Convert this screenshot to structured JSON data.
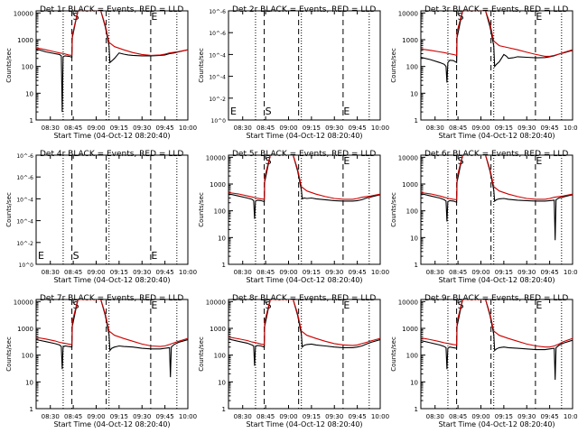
{
  "page": {
    "title_suffix": "BLACK = Events, RED = LLD",
    "xlabel": "Start Time (04-Oct-12 08:20:40)",
    "ylabel": "Counts/sec"
  },
  "axes": {
    "x_ticks": [
      {
        "v": 8.5,
        "label": "08:30"
      },
      {
        "v": 8.75,
        "label": "08:45"
      },
      {
        "v": 9.0,
        "label": "09:00"
      },
      {
        "v": 9.25,
        "label": "09:15"
      },
      {
        "v": 9.5,
        "label": "09:30"
      },
      {
        "v": 9.75,
        "label": "09:45"
      },
      {
        "v": 10.0,
        "label": "10:00"
      }
    ],
    "xlim": [
      8.345,
      10.0
    ],
    "log_ticks": [
      {
        "v": 1,
        "label": "1"
      },
      {
        "v": 10,
        "label": "10"
      },
      {
        "v": 100,
        "label": "100"
      },
      {
        "v": 1000,
        "label": "1000"
      },
      {
        "v": 10000,
        "label": "10000"
      }
    ],
    "ylim_log": [
      1,
      12000
    ],
    "empty_ticks": [
      {
        "v": 0.0,
        "label": "10^0"
      },
      {
        "v": 0.2,
        "label": "10^-2"
      },
      {
        "v": 0.4,
        "label": "10^-4"
      },
      {
        "v": 0.6,
        "label": "10^-4"
      },
      {
        "v": 0.8,
        "label": "10^-6"
      },
      {
        "v": 1.0,
        "label": "10^-6"
      }
    ],
    "ylim_linear": [
      0,
      1
    ]
  },
  "markers": {
    "dotted_x": [
      8.64,
      9.14,
      9.88
    ],
    "dashed_x": [
      8.735,
      9.11,
      9.595
    ],
    "s_label": "S",
    "e_label": "E",
    "s_x": 8.745,
    "e_x": 9.6
  },
  "chart_data": [
    {
      "type": "line",
      "title": "Det 1r",
      "scale": "log",
      "series": [
        {
          "name": "Events",
          "color": "#000000",
          "x": [
            8.345,
            8.45,
            8.55,
            8.6,
            8.62,
            8.63,
            8.64,
            8.66,
            8.7,
            8.72,
            8.735,
            8.74,
            8.8,
            8.9,
            9.0,
            9.05,
            9.1,
            9.14,
            9.15,
            9.17,
            9.2,
            9.25,
            9.28,
            9.3,
            9.35,
            9.4,
            9.5,
            9.6,
            9.7,
            9.75,
            9.8,
            9.85,
            9.9,
            10.0
          ],
          "y": [
            450,
            350,
            300,
            280,
            250,
            2,
            230,
            250,
            240,
            230,
            220,
            1200,
            12000,
            12000,
            12000,
            12000,
            3000,
            600,
            140,
            160,
            200,
            320,
            300,
            290,
            270,
            260,
            250,
            250,
            260,
            270,
            300,
            320,
            350,
            420
          ]
        },
        {
          "name": "LLD",
          "color": "#cc0000",
          "x": [
            8.345,
            8.45,
            8.55,
            8.6,
            8.65,
            8.7,
            8.735,
            8.74,
            8.8,
            8.9,
            9.0,
            9.05,
            9.1,
            9.14,
            9.2,
            9.3,
            9.4,
            9.5,
            9.6,
            9.7,
            9.75,
            9.8,
            9.85,
            9.9,
            10.0
          ],
          "y": [
            500,
            420,
            350,
            320,
            300,
            270,
            260,
            1500,
            12000,
            12000,
            12000,
            12000,
            3500,
            800,
            550,
            420,
            330,
            280,
            260,
            270,
            290,
            320,
            340,
            360,
            420
          ]
        }
      ]
    },
    {
      "type": "line",
      "title": "Det 2r",
      "scale": "linear",
      "series": [],
      "markers_text": true
    },
    {
      "type": "line",
      "title": "Det 3r",
      "scale": "log",
      "series": [
        {
          "name": "Events",
          "color": "#000000",
          "x": [
            8.345,
            8.45,
            8.55,
            8.6,
            8.62,
            8.63,
            8.64,
            8.66,
            8.7,
            8.735,
            8.74,
            8.8,
            8.9,
            9.0,
            9.05,
            9.1,
            9.14,
            9.15,
            9.17,
            9.2,
            9.25,
            9.28,
            9.3,
            9.35,
            9.4,
            9.5,
            9.6,
            9.7,
            9.75,
            9.8,
            9.85,
            9.9,
            10.0
          ],
          "y": [
            220,
            180,
            140,
            120,
            100,
            25,
            140,
            170,
            165,
            140,
            1200,
            12000,
            12000,
            12000,
            12000,
            3000,
            600,
            100,
            120,
            150,
            280,
            240,
            200,
            210,
            230,
            220,
            210,
            215,
            230,
            250,
            290,
            320,
            400
          ]
        },
        {
          "name": "LLD",
          "color": "#cc0000",
          "x": [
            8.345,
            8.45,
            8.55,
            8.6,
            8.65,
            8.7,
            8.735,
            8.74,
            8.8,
            8.9,
            9.0,
            9.05,
            9.1,
            9.14,
            9.2,
            9.3,
            9.4,
            9.5,
            9.6,
            9.7,
            9.75,
            9.8,
            9.85,
            9.9,
            10.0
          ],
          "y": [
            450,
            400,
            350,
            330,
            300,
            280,
            260,
            2000,
            12000,
            12000,
            12000,
            12000,
            4000,
            900,
            600,
            500,
            420,
            340,
            280,
            240,
            240,
            260,
            290,
            330,
            420
          ]
        }
      ]
    },
    {
      "type": "line",
      "title": "Det 4r",
      "scale": "linear",
      "series": [],
      "markers_text": true
    },
    {
      "type": "line",
      "title": "Det 5r",
      "scale": "log",
      "series": [
        {
          "name": "Events",
          "color": "#000000",
          "x": [
            8.345,
            8.45,
            8.55,
            8.6,
            8.62,
            8.63,
            8.64,
            8.66,
            8.7,
            8.735,
            8.74,
            8.8,
            8.9,
            9.0,
            9.05,
            9.1,
            9.14,
            9.15,
            9.17,
            9.2,
            9.25,
            9.3,
            9.4,
            9.5,
            9.6,
            9.7,
            9.75,
            9.8,
            9.85,
            9.9,
            10.0
          ],
          "y": [
            430,
            360,
            300,
            270,
            240,
            50,
            230,
            250,
            240,
            220,
            1200,
            12000,
            12000,
            12000,
            12000,
            3000,
            600,
            280,
            300,
            290,
            300,
            280,
            260,
            240,
            230,
            230,
            240,
            260,
            300,
            330,
            400
          ]
        },
        {
          "name": "LLD",
          "color": "#cc0000",
          "x": [
            8.345,
            8.45,
            8.55,
            8.6,
            8.65,
            8.7,
            8.735,
            8.74,
            8.8,
            8.9,
            9.0,
            9.05,
            9.1,
            9.14,
            9.2,
            9.3,
            9.4,
            9.5,
            9.6,
            9.7,
            9.75,
            9.8,
            9.85,
            9.9,
            10.0
          ],
          "y": [
            480,
            430,
            360,
            330,
            300,
            280,
            270,
            1800,
            12000,
            12000,
            12000,
            12000,
            3500,
            800,
            550,
            420,
            340,
            290,
            270,
            270,
            290,
            320,
            340,
            360,
            420
          ]
        }
      ]
    },
    {
      "type": "line",
      "title": "Det 6r",
      "scale": "log",
      "series": [
        {
          "name": "Events",
          "color": "#000000",
          "x": [
            8.345,
            8.45,
            8.55,
            8.6,
            8.62,
            8.63,
            8.64,
            8.66,
            8.7,
            8.735,
            8.74,
            8.8,
            8.9,
            9.0,
            9.05,
            9.1,
            9.14,
            9.15,
            9.17,
            9.2,
            9.25,
            9.3,
            9.4,
            9.5,
            9.6,
            9.7,
            9.75,
            9.8,
            9.81,
            9.82,
            9.85,
            9.9,
            10.0
          ],
          "y": [
            440,
            360,
            300,
            260,
            230,
            40,
            220,
            240,
            230,
            210,
            1200,
            12000,
            12000,
            12000,
            12000,
            3000,
            600,
            230,
            260,
            280,
            290,
            270,
            250,
            240,
            230,
            230,
            240,
            250,
            8,
            260,
            300,
            330,
            400
          ]
        },
        {
          "name": "LLD",
          "color": "#cc0000",
          "x": [
            8.345,
            8.45,
            8.55,
            8.6,
            8.65,
            8.7,
            8.735,
            8.74,
            8.8,
            8.9,
            9.0,
            9.05,
            9.1,
            9.14,
            9.2,
            9.3,
            9.4,
            9.5,
            9.6,
            9.7,
            9.75,
            9.8,
            9.85,
            9.9,
            10.0
          ],
          "y": [
            480,
            430,
            360,
            320,
            290,
            270,
            260,
            1800,
            12000,
            12000,
            12000,
            12000,
            3500,
            800,
            550,
            420,
            340,
            290,
            270,
            270,
            290,
            320,
            340,
            360,
            420
          ]
        }
      ]
    },
    {
      "type": "line",
      "title": "Det 7r",
      "scale": "log",
      "series": [
        {
          "name": "Events",
          "color": "#000000",
          "x": [
            8.345,
            8.45,
            8.55,
            8.6,
            8.62,
            8.63,
            8.64,
            8.66,
            8.7,
            8.735,
            8.74,
            8.8,
            8.9,
            9.0,
            9.05,
            9.1,
            9.14,
            9.15,
            9.17,
            9.2,
            9.25,
            9.3,
            9.4,
            9.5,
            9.6,
            9.7,
            9.75,
            9.8,
            9.81,
            9.82,
            9.85,
            9.9,
            10.0
          ],
          "y": [
            380,
            320,
            270,
            240,
            210,
            30,
            200,
            220,
            210,
            200,
            1200,
            12000,
            12000,
            12000,
            12000,
            3000,
            600,
            150,
            180,
            200,
            220,
            210,
            200,
            180,
            170,
            170,
            180,
            190,
            15,
            200,
            250,
            300,
            380
          ]
        },
        {
          "name": "LLD",
          "color": "#cc0000",
          "x": [
            8.345,
            8.45,
            8.55,
            8.6,
            8.65,
            8.7,
            8.735,
            8.74,
            8.8,
            8.9,
            9.0,
            9.05,
            9.1,
            9.14,
            9.2,
            9.3,
            9.4,
            9.5,
            9.6,
            9.7,
            9.75,
            9.8,
            9.85,
            9.9,
            10.0
          ],
          "y": [
            460,
            400,
            340,
            300,
            280,
            260,
            250,
            1800,
            12000,
            12000,
            12000,
            12000,
            3500,
            800,
            550,
            420,
            330,
            260,
            220,
            210,
            220,
            250,
            290,
            330,
            420
          ]
        }
      ]
    },
    {
      "type": "line",
      "title": "Det 8r",
      "scale": "log",
      "series": [
        {
          "name": "Events",
          "color": "#000000",
          "x": [
            8.345,
            8.45,
            8.55,
            8.6,
            8.62,
            8.63,
            8.64,
            8.66,
            8.7,
            8.735,
            8.74,
            8.8,
            8.9,
            9.0,
            9.05,
            9.1,
            9.14,
            9.15,
            9.17,
            9.2,
            9.25,
            9.3,
            9.4,
            9.5,
            9.6,
            9.7,
            9.75,
            9.8,
            9.85,
            9.9,
            10.0
          ],
          "y": [
            400,
            330,
            280,
            240,
            220,
            40,
            210,
            230,
            220,
            200,
            1200,
            12000,
            12000,
            12000,
            12000,
            3000,
            600,
            200,
            230,
            250,
            260,
            240,
            220,
            200,
            190,
            190,
            200,
            220,
            260,
            300,
            380
          ]
        },
        {
          "name": "LLD",
          "color": "#cc0000",
          "x": [
            8.345,
            8.45,
            8.55,
            8.6,
            8.65,
            8.7,
            8.735,
            8.74,
            8.8,
            8.9,
            9.0,
            9.05,
            9.1,
            9.14,
            9.2,
            9.3,
            9.4,
            9.5,
            9.6,
            9.7,
            9.75,
            9.8,
            9.85,
            9.9,
            10.0
          ],
          "y": [
            470,
            410,
            350,
            310,
            290,
            260,
            250,
            1800,
            12000,
            12000,
            12000,
            12000,
            3500,
            800,
            550,
            420,
            330,
            270,
            240,
            230,
            240,
            270,
            300,
            340,
            420
          ]
        }
      ]
    },
    {
      "type": "line",
      "title": "Det 9r",
      "scale": "log",
      "series": [
        {
          "name": "Events",
          "color": "#000000",
          "x": [
            8.345,
            8.45,
            8.55,
            8.6,
            8.62,
            8.63,
            8.64,
            8.66,
            8.7,
            8.735,
            8.74,
            8.8,
            8.9,
            9.0,
            9.05,
            9.1,
            9.14,
            9.15,
            9.17,
            9.2,
            9.25,
            9.3,
            9.4,
            9.5,
            9.6,
            9.7,
            9.75,
            9.8,
            9.81,
            9.82,
            9.85,
            9.9,
            10.0
          ],
          "y": [
            350,
            290,
            240,
            210,
            190,
            30,
            180,
            200,
            190,
            180,
            1200,
            12000,
            12000,
            12000,
            12000,
            3000,
            600,
            150,
            170,
            190,
            200,
            190,
            180,
            170,
            160,
            160,
            170,
            180,
            12,
            190,
            230,
            280,
            360
          ]
        },
        {
          "name": "LLD",
          "color": "#cc0000",
          "x": [
            8.345,
            8.45,
            8.55,
            8.6,
            8.65,
            8.7,
            8.735,
            8.74,
            8.8,
            8.9,
            9.0,
            9.05,
            9.1,
            9.14,
            9.2,
            9.3,
            9.4,
            9.5,
            9.6,
            9.7,
            9.75,
            9.8,
            9.85,
            9.9,
            10.0
          ],
          "y": [
            440,
            380,
            320,
            290,
            270,
            250,
            240,
            1800,
            12000,
            12000,
            12000,
            12000,
            3500,
            800,
            550,
            420,
            330,
            260,
            220,
            200,
            200,
            220,
            260,
            320,
            420
          ]
        }
      ]
    }
  ]
}
